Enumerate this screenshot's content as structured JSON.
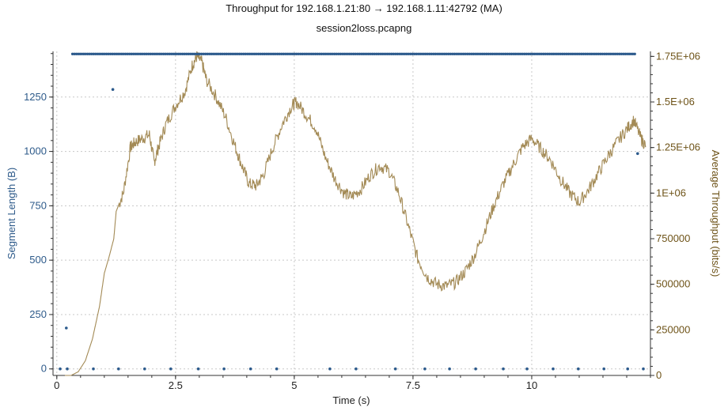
{
  "chart_data": {
    "type": "line+scatter",
    "title": "Throughput for 192.168.1.21:80 → 192.168.1.11:42792 (MA)",
    "subtitle": "session2loss.pcapng",
    "xlabel": "Time (s)",
    "ylabel_left": "Segment Length (B)",
    "ylabel_right": "Average Throughput (bits/s)",
    "xlim": [
      -0.08,
      12.5
    ],
    "ylim_left": [
      -30,
      1460
    ],
    "ylim_right": [
      0,
      1777500
    ],
    "x_ticks": [
      0,
      2.5,
      5,
      7.5,
      10
    ],
    "y_left_ticks": [
      0,
      250,
      500,
      750,
      1000,
      1250
    ],
    "y_right_ticks": [
      0,
      250000,
      500000,
      750000,
      1000000,
      1250000,
      1500000,
      1750000
    ],
    "y_left_tick_labels": [
      "0",
      "250",
      "500",
      "750",
      "1000",
      "1250"
    ],
    "y_right_tick_labels": [
      "0",
      "250000",
      "500000",
      "750000",
      "1E+06",
      "1.25E+06",
      "1.5E+06",
      "1.75E+06"
    ],
    "x_tick_labels": [
      "0",
      "2.5",
      "5",
      "7.5",
      "10"
    ],
    "grid": true,
    "colors": {
      "segment": "#2c5a8c",
      "throughput": "#a38a55",
      "left_axis": "#2d5a8a",
      "right_axis": "#6e5318"
    },
    "series": [
      {
        "name": "Segment Length (B)",
        "axis": "left",
        "style": "scatter",
        "dense_band": {
          "y": 1448,
          "x_start": 0.33,
          "x_end": 12.2
        },
        "points": [
          [
            0.07,
            0
          ],
          [
            0.22,
            0
          ],
          [
            0.2,
            188
          ],
          [
            0.77,
            0
          ],
          [
            1.3,
            0
          ],
          [
            1.18,
            1285
          ],
          [
            1.85,
            0
          ],
          [
            2.4,
            0
          ],
          [
            2.98,
            0
          ],
          [
            3.52,
            0
          ],
          [
            4.08,
            0
          ],
          [
            4.63,
            0
          ],
          [
            5.75,
            0
          ],
          [
            6.3,
            0
          ],
          [
            7.13,
            0
          ],
          [
            7.75,
            0
          ],
          [
            8.27,
            0
          ],
          [
            8.82,
            0
          ],
          [
            9.4,
            0
          ],
          [
            9.9,
            0
          ],
          [
            10.45,
            0
          ],
          [
            10.98,
            0
          ],
          [
            11.52,
            0
          ],
          [
            12.02,
            0
          ],
          [
            12.35,
            0
          ],
          [
            12.23,
            990
          ]
        ]
      },
      {
        "name": "Average Throughput (bits/s)",
        "axis": "right",
        "style": "line",
        "points": [
          [
            0.17,
            0
          ],
          [
            0.3,
            0
          ],
          [
            0.45,
            20000
          ],
          [
            0.6,
            80000
          ],
          [
            0.75,
            200000
          ],
          [
            0.9,
            380000
          ],
          [
            1.0,
            560000
          ],
          [
            1.1,
            650000
          ],
          [
            1.2,
            750000
          ],
          [
            1.25,
            900000
          ],
          [
            1.4,
            1000000
          ],
          [
            1.55,
            1250000
          ],
          [
            1.65,
            1280000
          ],
          [
            1.8,
            1300000
          ],
          [
            1.95,
            1320000
          ],
          [
            2.05,
            1170000
          ],
          [
            2.15,
            1260000
          ],
          [
            2.3,
            1380000
          ],
          [
            2.5,
            1480000
          ],
          [
            2.7,
            1560000
          ],
          [
            2.85,
            1700000
          ],
          [
            2.95,
            1750000
          ],
          [
            3.05,
            1720000
          ],
          [
            3.15,
            1620000
          ],
          [
            3.35,
            1530000
          ],
          [
            3.55,
            1420000
          ],
          [
            3.75,
            1260000
          ],
          [
            3.9,
            1150000
          ],
          [
            4.05,
            1050000
          ],
          [
            4.2,
            1040000
          ],
          [
            4.35,
            1100000
          ],
          [
            4.55,
            1250000
          ],
          [
            4.75,
            1380000
          ],
          [
            4.95,
            1480000
          ],
          [
            5.05,
            1500000
          ],
          [
            5.25,
            1430000
          ],
          [
            5.45,
            1360000
          ],
          [
            5.65,
            1200000
          ],
          [
            5.85,
            1080000
          ],
          [
            6.05,
            1000000
          ],
          [
            6.2,
            980000
          ],
          [
            6.4,
            1020000
          ],
          [
            6.6,
            1100000
          ],
          [
            6.8,
            1150000
          ],
          [
            7.0,
            1120000
          ],
          [
            7.2,
            1000000
          ],
          [
            7.4,
            820000
          ],
          [
            7.6,
            640000
          ],
          [
            7.8,
            540000
          ],
          [
            8.0,
            500000
          ],
          [
            8.2,
            490000
          ],
          [
            8.4,
            510000
          ],
          [
            8.6,
            570000
          ],
          [
            8.8,
            660000
          ],
          [
            9.0,
            790000
          ],
          [
            9.2,
            930000
          ],
          [
            9.4,
            1050000
          ],
          [
            9.6,
            1150000
          ],
          [
            9.8,
            1250000
          ],
          [
            10.0,
            1300000
          ],
          [
            10.2,
            1240000
          ],
          [
            10.4,
            1180000
          ],
          [
            10.6,
            1080000
          ],
          [
            10.8,
            1000000
          ],
          [
            11.0,
            950000
          ],
          [
            11.2,
            1020000
          ],
          [
            11.4,
            1110000
          ],
          [
            11.6,
            1200000
          ],
          [
            11.8,
            1280000
          ],
          [
            12.0,
            1350000
          ],
          [
            12.15,
            1400000
          ],
          [
            12.3,
            1300000
          ],
          [
            12.4,
            1260000
          ]
        ]
      }
    ]
  }
}
